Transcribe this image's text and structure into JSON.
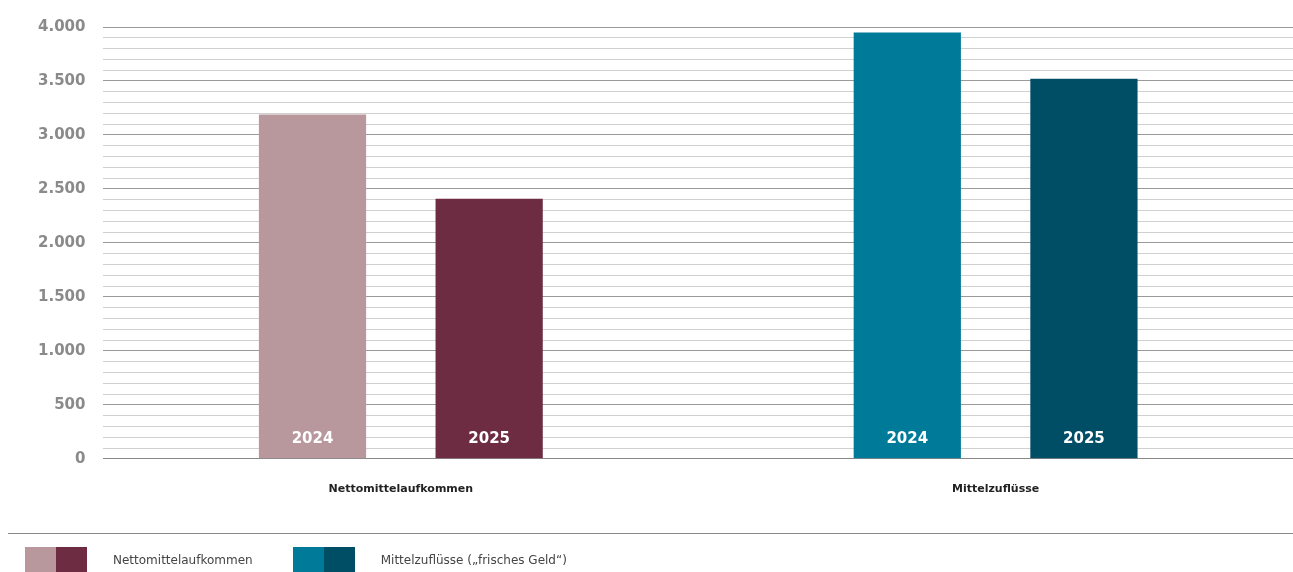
{
  "chart_data": {
    "type": "bar",
    "categories": [
      "Nettomittelaufkommen",
      "Mittelzuflüsse"
    ],
    "series": [
      {
        "name": "2024",
        "colors": [
          "#b8979d",
          "#007a99"
        ],
        "values": [
          3190,
          3950
        ]
      },
      {
        "name": "2025",
        "colors": [
          "#6e2c42",
          "#004d66"
        ],
        "values": [
          2410,
          3520
        ]
      }
    ],
    "ylim": [
      0,
      4000
    ],
    "yticks": [
      {
        "value": 0,
        "label": "0"
      },
      {
        "value": 100,
        "label": null
      },
      {
        "value": 200,
        "label": null
      },
      {
        "value": 300,
        "label": null
      },
      {
        "value": 400,
        "label": null
      },
      {
        "value": 500,
        "label": "500"
      },
      {
        "value": 600,
        "label": null
      },
      {
        "value": 700,
        "label": null
      },
      {
        "value": 800,
        "label": null
      },
      {
        "value": 900,
        "label": null
      },
      {
        "value": 1000,
        "label": "1.000"
      },
      {
        "value": 1100,
        "label": null
      },
      {
        "value": 1200,
        "label": null
      },
      {
        "value": 1300,
        "label": null
      },
      {
        "value": 1400,
        "label": null
      },
      {
        "value": 1500,
        "label": "1.500"
      },
      {
        "value": 1600,
        "label": null
      },
      {
        "value": 1700,
        "label": null
      },
      {
        "value": 1800,
        "label": null
      },
      {
        "value": 1900,
        "label": null
      },
      {
        "value": 2000,
        "label": "2.000"
      },
      {
        "value": 2100,
        "label": null
      },
      {
        "value": 2200,
        "label": null
      },
      {
        "value": 2300,
        "label": null
      },
      {
        "value": 2400,
        "label": null
      },
      {
        "value": 2500,
        "label": "2.500"
      },
      {
        "value": 2600,
        "label": null
      },
      {
        "value": 2700,
        "label": null
      },
      {
        "value": 2800,
        "label": null
      },
      {
        "value": 2900,
        "label": null
      },
      {
        "value": 3000,
        "label": "3.000"
      },
      {
        "value": 3100,
        "label": null
      },
      {
        "value": 3200,
        "label": null
      },
      {
        "value": 3300,
        "label": null
      },
      {
        "value": 3400,
        "label": null
      },
      {
        "value": 3500,
        "label": "3.500"
      },
      {
        "value": 3600,
        "label": null
      },
      {
        "value": 3700,
        "label": null
      },
      {
        "value": 3800,
        "label": null
      },
      {
        "value": 3900,
        "label": null
      },
      {
        "value": 4000,
        "label": "4.000"
      }
    ],
    "grid": "y",
    "legend": false,
    "annotations": [
      "Nettomittelaufkommen",
      "Mittelzuflüsse („frisches Geld“)"
    ]
  }
}
